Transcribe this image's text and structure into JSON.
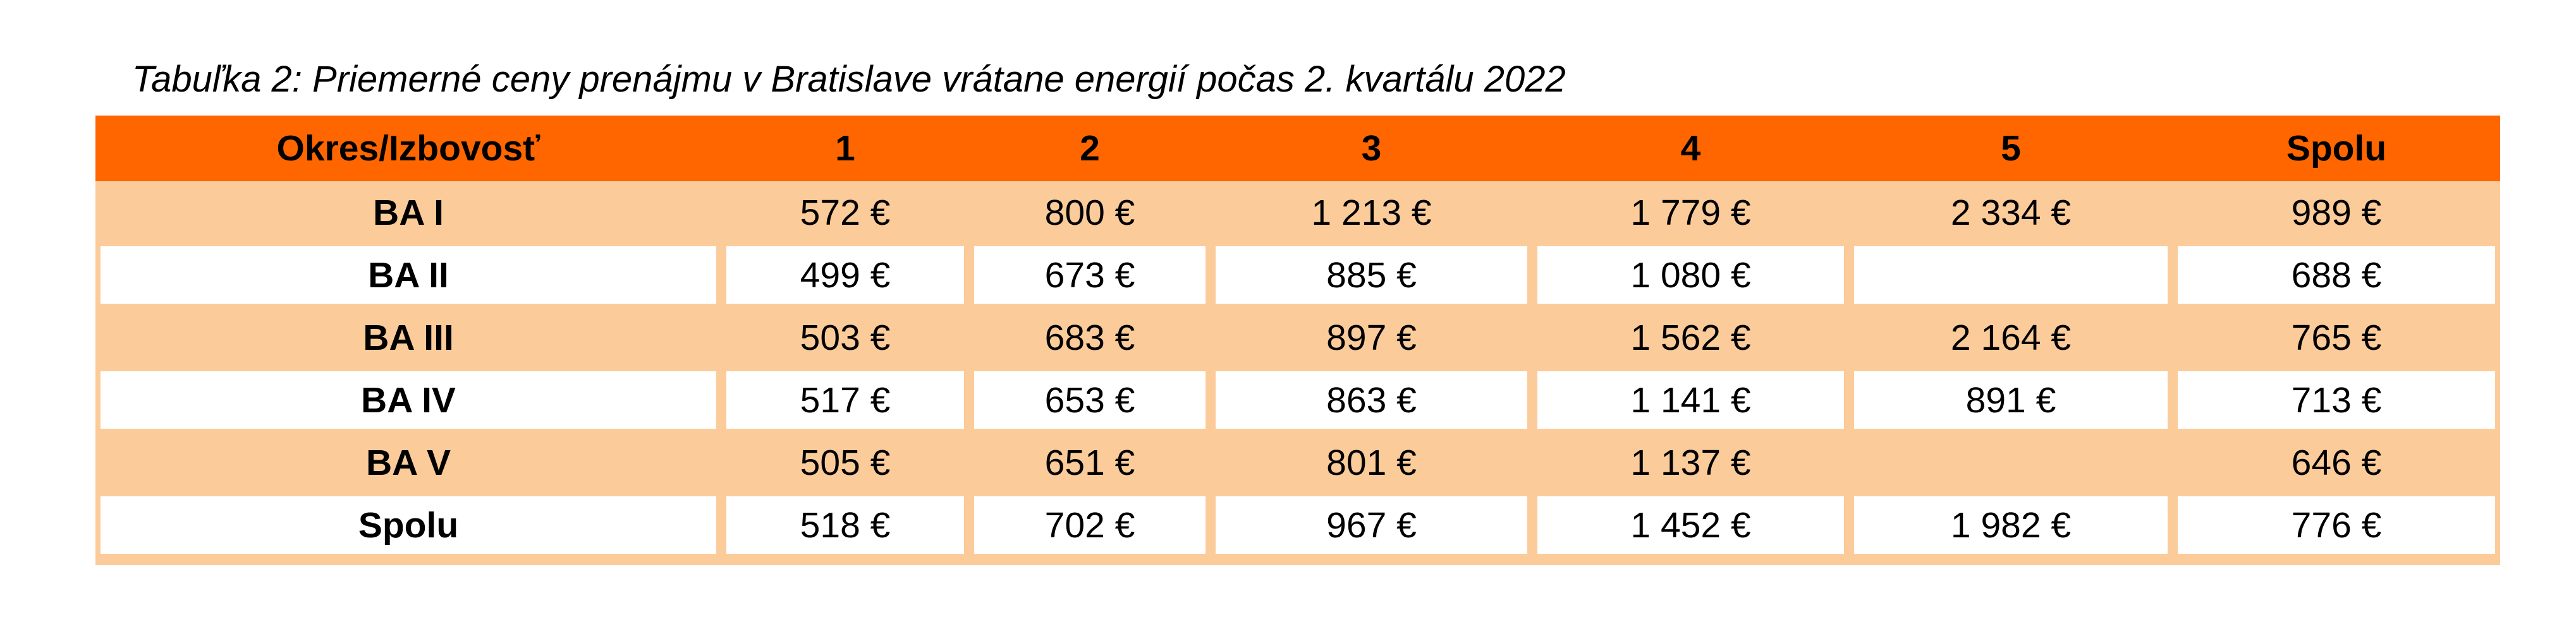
{
  "caption": "Tabuľka 2: Priemerné ceny prenájmu v Bratislave vrátane energií počas 2. kvartálu 2022",
  "table": {
    "header": [
      "Okres/Izbovosť",
      "1",
      "2",
      "3",
      "4",
      "5",
      "Spolu"
    ],
    "rows": [
      [
        "BA I",
        "572 €",
        "800 €",
        "1 213 €",
        "1 779 €",
        "2 334 €",
        "989 €"
      ],
      [
        "BA II",
        "499 €",
        "673 €",
        "885 €",
        "1 080 €",
        null,
        "688 €"
      ],
      [
        "BA III",
        "503 €",
        "683 €",
        "897 €",
        "1 562 €",
        "2 164 €",
        "765 €"
      ],
      [
        "BA IV",
        "517 €",
        "653 €",
        "863 €",
        "1 141 €",
        "891 €",
        "713 €"
      ],
      [
        "BA V",
        "505 €",
        "651 €",
        "801 €",
        "1 137 €",
        null,
        "646 €"
      ],
      [
        "Spolu",
        "518 €",
        "702 €",
        "967 €",
        "1 452 €",
        "1 982 €",
        "776 €"
      ]
    ]
  }
}
